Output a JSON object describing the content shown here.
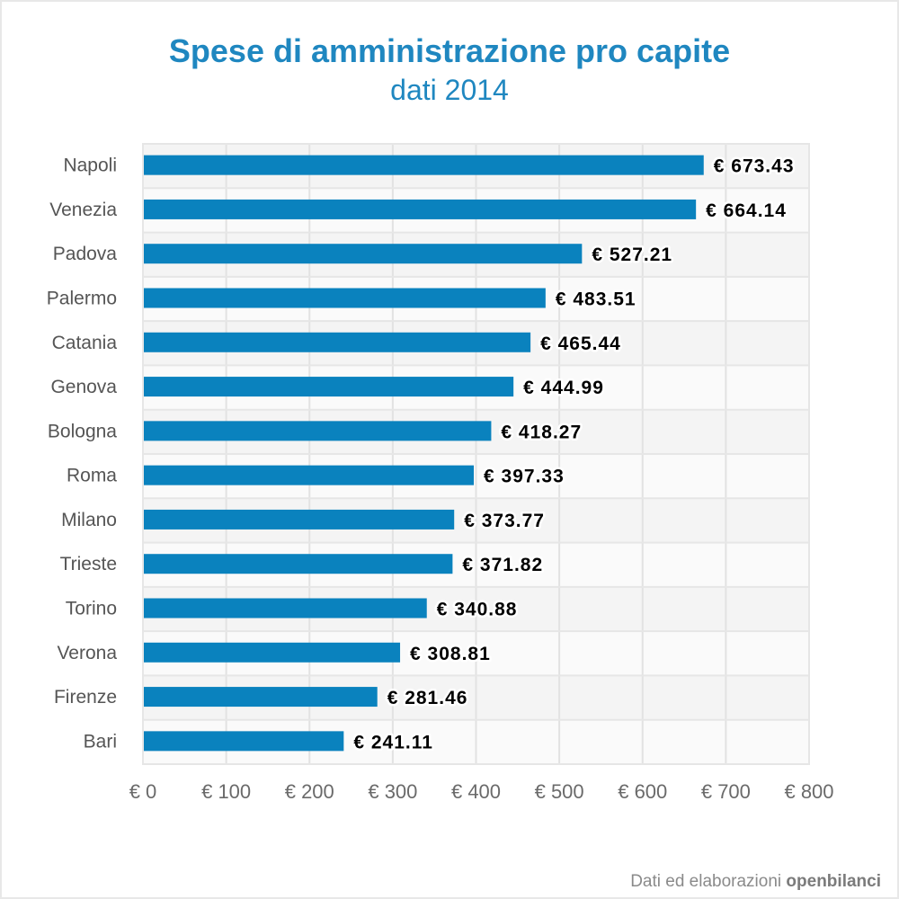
{
  "chart_data": {
    "type": "bar",
    "orientation": "horizontal",
    "title": "Spese di amministrazione pro capite",
    "subtitle": "dati 2014",
    "categories": [
      "Napoli",
      "Venezia",
      "Padova",
      "Palermo",
      "Catania",
      "Genova",
      "Bologna",
      "Roma",
      "Milano",
      "Trieste",
      "Torino",
      "Verona",
      "Firenze",
      "Bari"
    ],
    "values": [
      673.43,
      664.14,
      527.21,
      483.51,
      465.44,
      444.99,
      418.27,
      397.33,
      373.77,
      371.82,
      340.88,
      308.81,
      281.46,
      241.11
    ],
    "value_labels": [
      "€ 673.43",
      "€ 664.14",
      "€ 527.21",
      "€ 483.51",
      "€ 465.44",
      "€ 444.99",
      "€ 418.27",
      "€ 397.33",
      "€ 373.77",
      "€ 371.82",
      "€ 340.88",
      "€ 308.81",
      "€ 281.46",
      "€ 241.11"
    ],
    "x_ticks": [
      0,
      100,
      200,
      300,
      400,
      500,
      600,
      700,
      800
    ],
    "x_tick_labels": [
      "€ 0",
      "€ 100",
      "€ 200",
      "€ 300",
      "€ 400",
      "€ 500",
      "€ 600",
      "€ 700",
      "€ 800"
    ],
    "xlim": [
      0,
      800
    ],
    "grid": true,
    "bar_color": "#0a82be"
  },
  "footer": {
    "prefix": "Dati ed elaborazioni",
    "brand": "openbilanci"
  }
}
